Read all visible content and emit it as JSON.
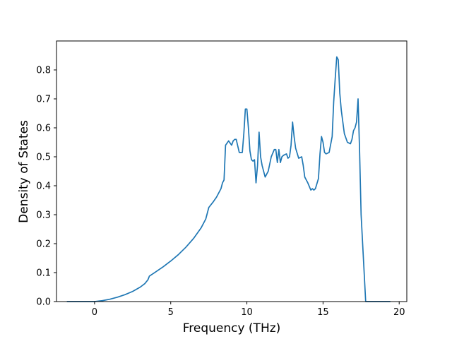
{
  "chart_data": {
    "type": "line",
    "title": "",
    "xlabel": "Frequency (THz)",
    "ylabel": "Density of States",
    "xlim": [
      -2.5,
      20.5
    ],
    "ylim": [
      0.0,
      0.9
    ],
    "xticks": [
      0,
      5,
      10,
      15,
      20
    ],
    "xtick_labels": [
      "0",
      "5",
      "10",
      "15",
      "20"
    ],
    "yticks": [
      0.0,
      0.1,
      0.2,
      0.3,
      0.4,
      0.5,
      0.6,
      0.7,
      0.8
    ],
    "ytick_labels": [
      "0.0",
      "0.1",
      "0.2",
      "0.3",
      "0.4",
      "0.5",
      "0.6",
      "0.7",
      "0.8"
    ],
    "grid": false,
    "legend": "none",
    "series": [
      {
        "color": "#1f77b4",
        "x": [
          -1.8,
          -1.0,
          0.0,
          0.5,
          1.0,
          1.5,
          2.0,
          2.5,
          3.0,
          3.3,
          3.5,
          3.6,
          4.0,
          4.5,
          5.0,
          5.5,
          6.0,
          6.5,
          7.0,
          7.3,
          7.5,
          7.8,
          8.0,
          8.3,
          8.4,
          8.5,
          8.6,
          8.8,
          9.0,
          9.1,
          9.2,
          9.3,
          9.5,
          9.7,
          9.8,
          9.9,
          10.0,
          10.1,
          10.2,
          10.3,
          10.4,
          10.5,
          10.6,
          10.7,
          10.8,
          10.9,
          11.0,
          11.2,
          11.4,
          11.6,
          11.8,
          11.9,
          12.0,
          12.1,
          12.2,
          12.3,
          12.4,
          12.6,
          12.7,
          12.8,
          12.9,
          13.0,
          13.1,
          13.2,
          13.4,
          13.6,
          13.7,
          13.8,
          14.0,
          14.2,
          14.3,
          14.4,
          14.5,
          14.7,
          14.8,
          14.9,
          15.0,
          15.1,
          15.2,
          15.4,
          15.6,
          15.7,
          15.8,
          15.9,
          16.0,
          16.1,
          16.2,
          16.4,
          16.6,
          16.8,
          16.9,
          17.0,
          17.1,
          17.2,
          17.3,
          17.4,
          17.5,
          17.7,
          17.8,
          18.5,
          19.4
        ],
        "y": [
          0.0,
          0.0,
          0.0,
          0.003,
          0.008,
          0.015,
          0.024,
          0.035,
          0.05,
          0.062,
          0.075,
          0.088,
          0.102,
          0.12,
          0.14,
          0.162,
          0.188,
          0.218,
          0.255,
          0.285,
          0.325,
          0.345,
          0.36,
          0.39,
          0.41,
          0.42,
          0.54,
          0.555,
          0.54,
          0.555,
          0.56,
          0.56,
          0.515,
          0.515,
          0.58,
          0.665,
          0.665,
          0.6,
          0.52,
          0.49,
          0.485,
          0.49,
          0.41,
          0.47,
          0.585,
          0.5,
          0.47,
          0.43,
          0.45,
          0.5,
          0.525,
          0.525,
          0.48,
          0.525,
          0.48,
          0.5,
          0.505,
          0.51,
          0.495,
          0.5,
          0.54,
          0.62,
          0.57,
          0.53,
          0.495,
          0.5,
          0.47,
          0.43,
          0.41,
          0.385,
          0.39,
          0.385,
          0.39,
          0.425,
          0.51,
          0.57,
          0.55,
          0.515,
          0.51,
          0.515,
          0.57,
          0.69,
          0.77,
          0.845,
          0.835,
          0.72,
          0.66,
          0.58,
          0.55,
          0.545,
          0.56,
          0.59,
          0.6,
          0.62,
          0.7,
          0.52,
          0.3,
          0.1,
          0.0,
          0.0,
          0.0
        ]
      }
    ]
  }
}
